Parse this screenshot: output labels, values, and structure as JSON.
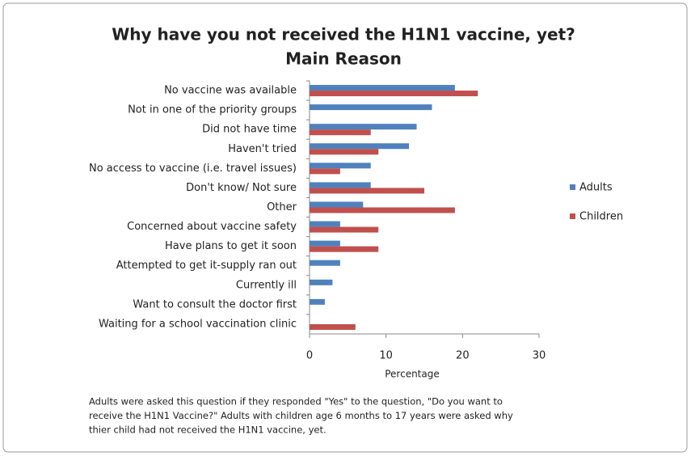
{
  "chart_data": {
    "type": "bar",
    "orientation": "horizontal",
    "title": "Why have you not received the H1N1 vaccine, yet?",
    "subtitle": "Main Reason",
    "categories": [
      "No vaccine was available",
      "Not in one of the priority groups",
      "Did not have time",
      "Haven't tried",
      "No access to vaccine (i.e. travel issues)",
      "Don't know/ Not sure",
      "Other",
      "Concerned about vaccine safety",
      "Have plans to get it soon",
      "Attempted to get it-supply ran out",
      "Currently ill",
      "Want to consult the doctor first",
      "Waiting for a school vaccination clinic"
    ],
    "series": [
      {
        "name": "Adults",
        "color": "#4f81bd",
        "values": [
          19,
          16,
          14,
          13,
          8,
          8,
          7,
          4,
          4,
          4,
          3,
          2,
          0
        ]
      },
      {
        "name": "Children",
        "color": "#c0504d",
        "values": [
          22,
          0,
          8,
          9,
          4,
          15,
          19,
          9,
          9,
          0,
          0,
          0,
          6
        ]
      }
    ],
    "xlabel": "Percentage",
    "xlim": [
      0,
      30
    ],
    "xticks": [
      0,
      10,
      20,
      30
    ],
    "legend": "right",
    "annotations": [
      "Adults were asked this question if they responded \"Yes\" to the question, \"Do you want to",
      "receive the H1N1 Vaccine?\"  Adults with children age  6 months to 17 years were asked why",
      "thier child had not received the H1N1 vaccine, yet."
    ]
  }
}
